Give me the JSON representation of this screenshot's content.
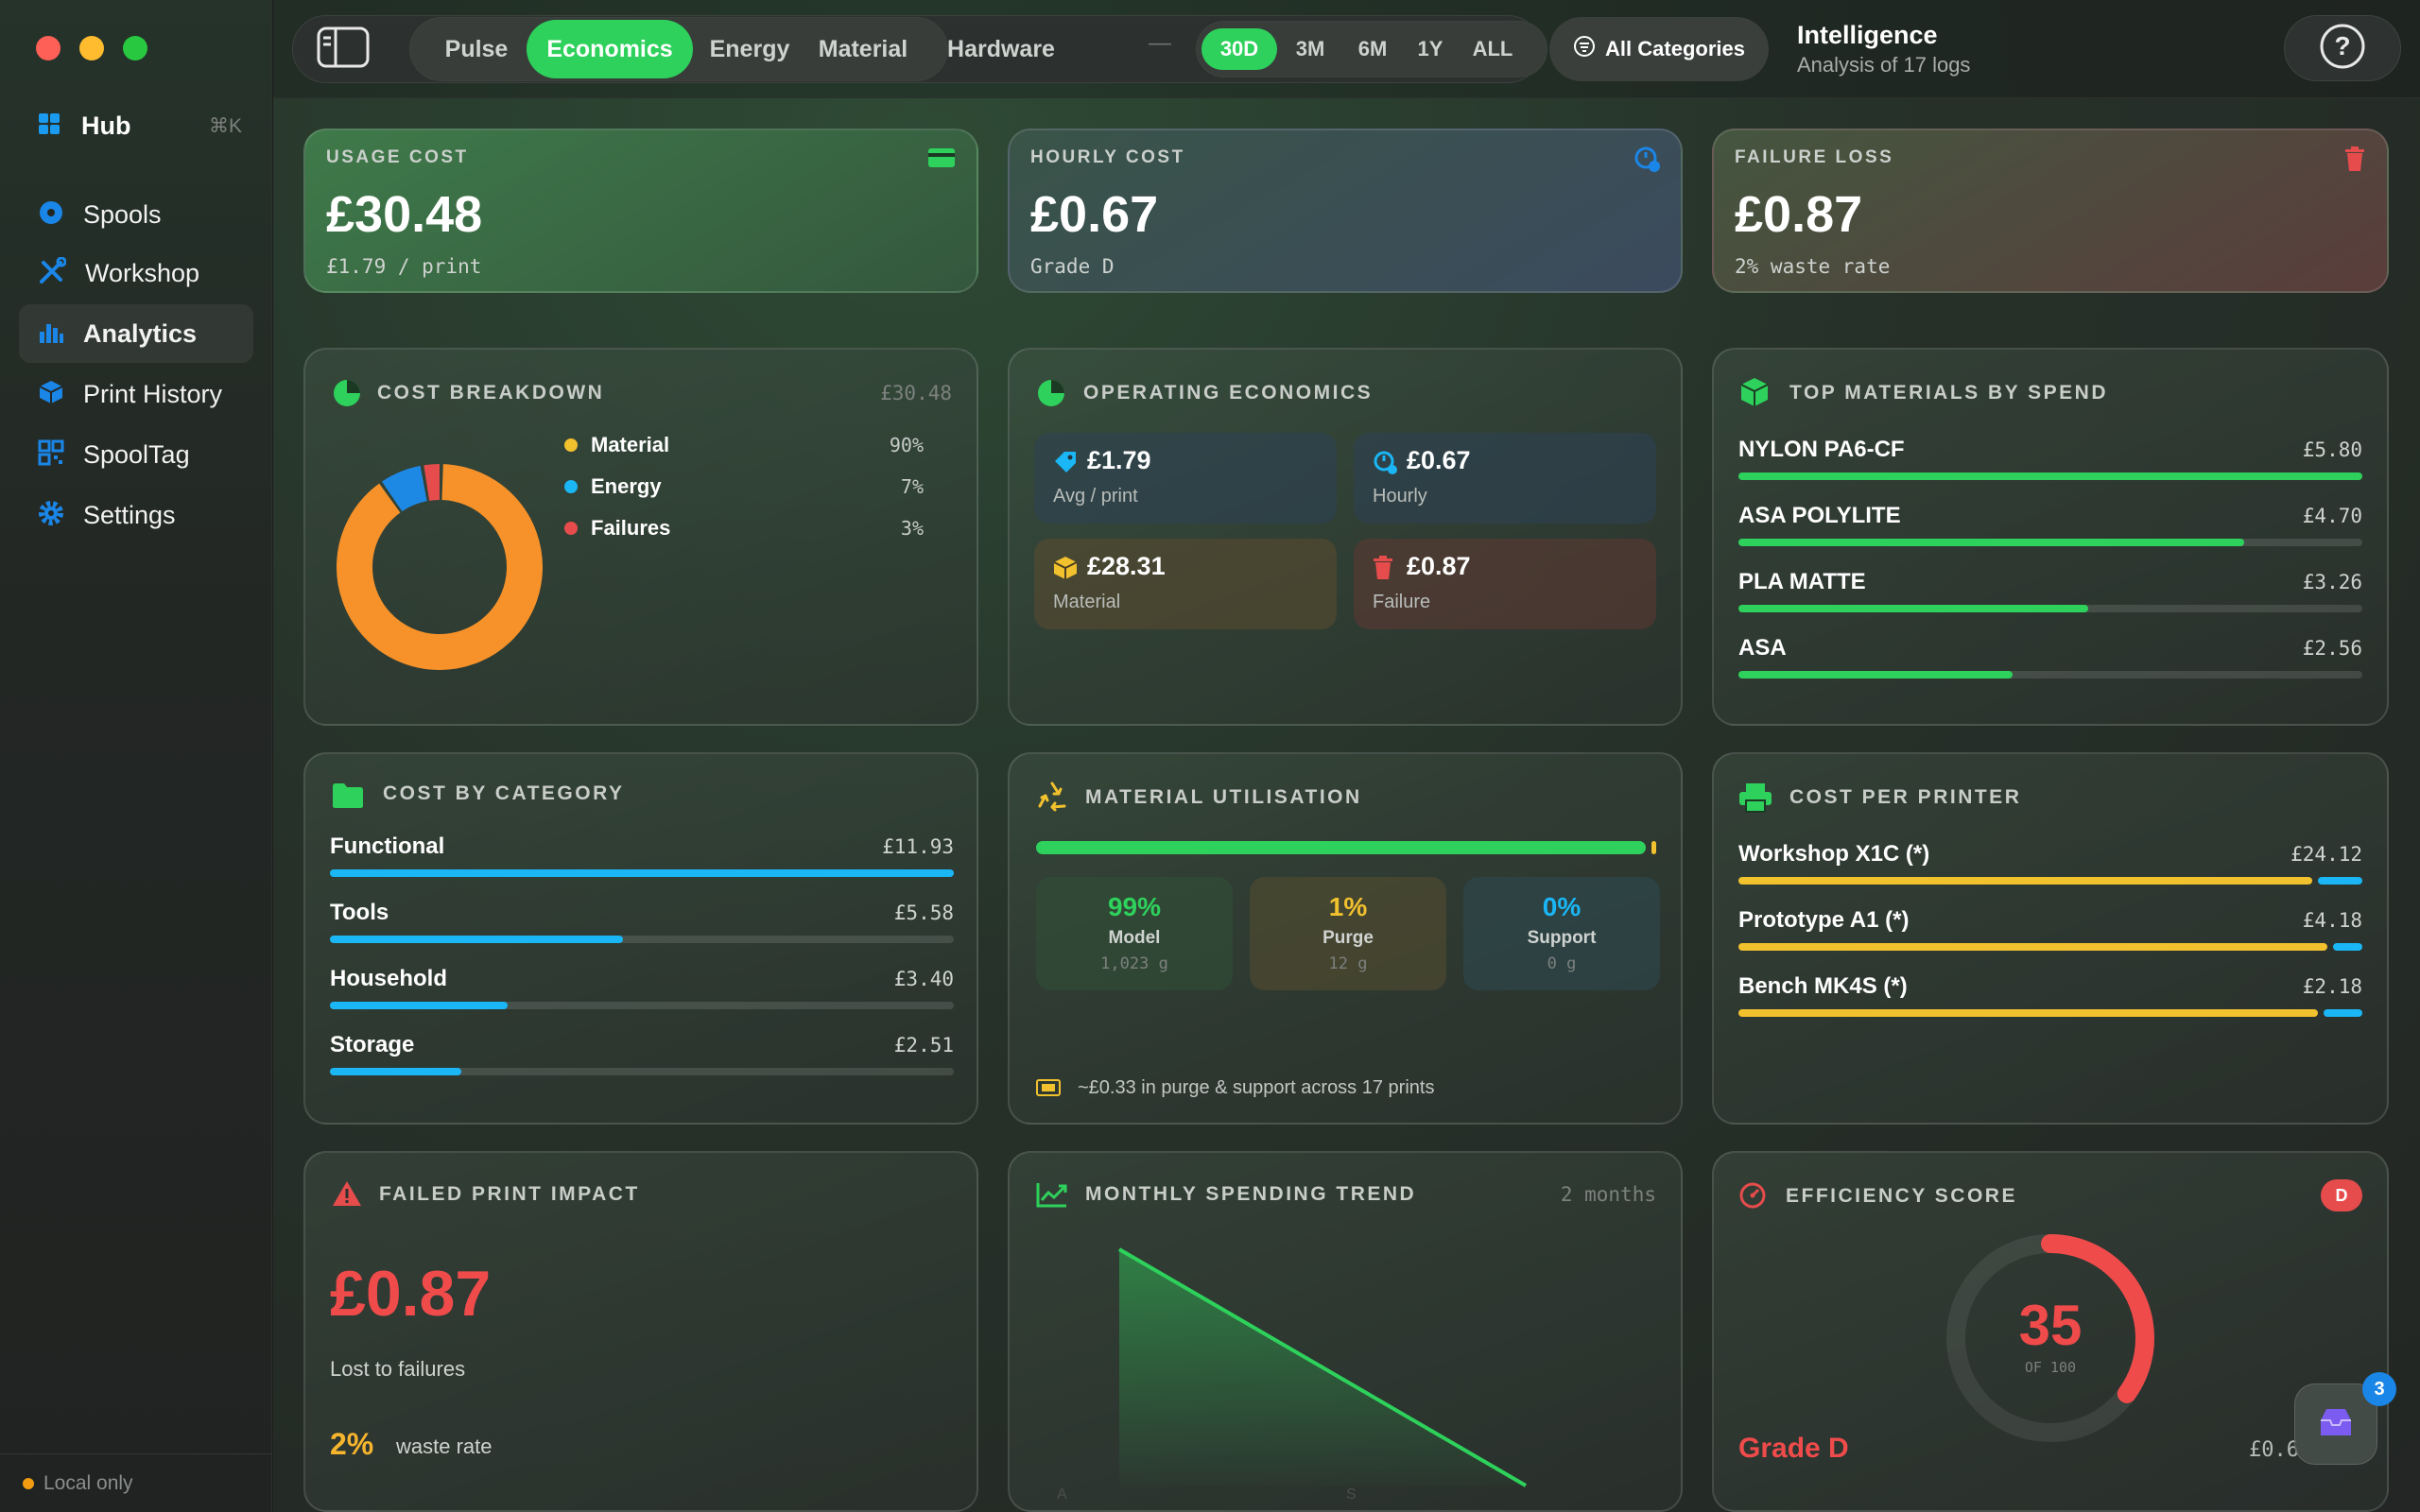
{
  "window": {
    "traffic_lights": [
      "#fe5f57",
      "#febc2e",
      "#28c840"
    ]
  },
  "sidebar": {
    "hub": {
      "label": "Hub",
      "shortcut": "⌘K",
      "icon": "grid-icon"
    },
    "items": [
      {
        "label": "Spools",
        "icon": "spool-icon",
        "active": false
      },
      {
        "label": "Workshop",
        "icon": "tools-icon",
        "active": false
      },
      {
        "label": "Analytics",
        "icon": "bar-chart-icon",
        "active": true
      },
      {
        "label": "Print History",
        "icon": "cube-icon",
        "active": false
      },
      {
        "label": "SpoolTag",
        "icon": "qr-icon",
        "active": false
      },
      {
        "label": "Settings",
        "icon": "gear-icon",
        "active": false
      }
    ],
    "footer": "Local only"
  },
  "topbar": {
    "tabs": [
      "Pulse",
      "Economics",
      "Energy",
      "Material",
      "Hardware"
    ],
    "active_tab": "Economics",
    "separator": "—",
    "ranges": [
      "30D",
      "3M",
      "6M",
      "1Y",
      "ALL"
    ],
    "active_range": "30D",
    "category_button": "All Categories",
    "title": "Intelligence",
    "subtitle": "Analysis of 17 logs",
    "help": "?"
  },
  "kpis": {
    "usage": {
      "label": "USAGE COST",
      "value": "£30.48",
      "sub": "£1.79 / print",
      "accent": "#2ed15b"
    },
    "hourly": {
      "label": "HOURLY COST",
      "value": "£0.67",
      "sub": "Grade D",
      "accent": "#1e88e5"
    },
    "failure": {
      "label": "FAILURE LOSS",
      "value": "£0.87",
      "sub": "2% waste rate",
      "accent": "#e74c4c"
    }
  },
  "cost_breakdown": {
    "title": "COST BREAKDOWN",
    "total": "£30.48",
    "items": [
      {
        "name": "Material",
        "pct": "90%",
        "share": 90,
        "color": "#f7922a",
        "dot": "#f2c12e"
      },
      {
        "name": "Energy",
        "pct": "7%",
        "share": 7,
        "color": "#1e88e5",
        "dot": "#1ab6f5"
      },
      {
        "name": "Failures",
        "pct": "3%",
        "share": 3,
        "color": "#e74c4c",
        "dot": "#e74c4c"
      }
    ]
  },
  "operating": {
    "title": "OPERATING ECONOMICS",
    "tiles": [
      {
        "value": "£1.79",
        "label": "Avg / print",
        "icon": "tag-icon"
      },
      {
        "value": "£0.67",
        "label": "Hourly",
        "icon": "clock-icon"
      },
      {
        "value": "£28.31",
        "label": "Material",
        "icon": "box-icon"
      },
      {
        "value": "£0.87",
        "label": "Failure",
        "icon": "trash-icon"
      }
    ]
  },
  "top_materials": {
    "title": "TOP MATERIALS BY SPEND",
    "items": [
      {
        "name": "NYLON PA6-CF",
        "value": "£5.80",
        "share": 1.0
      },
      {
        "name": "ASA POLYLITE",
        "value": "£4.70",
        "share": 0.81
      },
      {
        "name": "PLA MATTE",
        "value": "£3.26",
        "share": 0.56
      },
      {
        "name": "ASA",
        "value": "£2.56",
        "share": 0.44
      }
    ]
  },
  "cost_by_category": {
    "title": "COST BY CATEGORY",
    "items": [
      {
        "name": "Functional",
        "value": "£11.93",
        "share": 1.0
      },
      {
        "name": "Tools",
        "value": "£5.58",
        "share": 0.47
      },
      {
        "name": "Household",
        "value": "£3.40",
        "share": 0.285
      },
      {
        "name": "Storage",
        "value": "£2.51",
        "share": 0.21
      }
    ]
  },
  "material_utilisation": {
    "title": "MATERIAL UTILISATION",
    "model": {
      "pct": "99%",
      "label": "Model",
      "grams": "1,023 g",
      "share": 0.99
    },
    "purge": {
      "pct": "1%",
      "label": "Purge",
      "grams": "12 g",
      "share": 0.01
    },
    "support": {
      "pct": "0%",
      "label": "Support",
      "grams": "0 g",
      "share": 0.0
    },
    "note": "~£0.33 in purge & support across 17 prints"
  },
  "cost_per_printer": {
    "title": "COST PER PRINTER",
    "items": [
      {
        "name": "Workshop X1C (*)",
        "value": "£24.12",
        "material_share": 0.925,
        "energy_share": 0.075
      },
      {
        "name": "Prototype A1 (*)",
        "value": "£4.18",
        "material_share": 0.95,
        "energy_share": 0.05
      },
      {
        "name": "Bench MK4S (*)",
        "value": "£2.18",
        "material_share": 0.935,
        "energy_share": 0.065
      }
    ]
  },
  "failed_impact": {
    "title": "FAILED PRINT IMPACT",
    "value": "£0.87",
    "caption": "Lost to failures",
    "waste_pct": "2%",
    "waste_label": "waste rate"
  },
  "spending_trend": {
    "title": "MONTHLY SPENDING TREND",
    "range_label": "2 months"
  },
  "chart_data": {
    "type": "area",
    "x": [
      "A",
      "S"
    ],
    "series": [
      {
        "values": [
          100,
          0
        ]
      }
    ],
    "xlabel": "",
    "ylabel": ""
  },
  "efficiency": {
    "title": "EFFICIENCY SCORE",
    "grade_badge": "D",
    "score": "35",
    "score_value": 35,
    "out_of": "OF 100",
    "grade_label": "Grade D",
    "footer_value": "£0.6"
  },
  "inbox": {
    "count": "3",
    "icon": "inbox-icon"
  }
}
